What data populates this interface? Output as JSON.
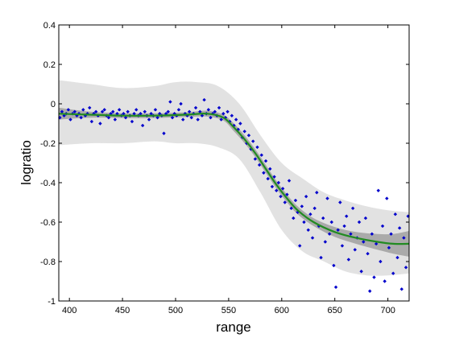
{
  "chart_data": {
    "type": "scatter",
    "xlabel": "range",
    "ylabel": "logratio",
    "xlim": [
      390,
      720
    ],
    "ylim": [
      -1,
      0.4
    ],
    "xticks": [
      400,
      450,
      500,
      550,
      600,
      650,
      700
    ],
    "yticks": [
      -1,
      -0.8,
      -0.6,
      -0.4,
      -0.2,
      0,
      0.2,
      0.4
    ],
    "ytick_labels": [
      "-1",
      "-0.8",
      "-0.6",
      "-0.4",
      "-0.2",
      "0",
      "0.2",
      "0.4"
    ],
    "grid": false,
    "colors": {
      "points": "#0000cc",
      "fit_line": "#228b22",
      "prediction_band": "#e2e2e2",
      "confidence_band": "#aaaaaa"
    },
    "fit": {
      "name": "",
      "x": [
        390,
        420,
        450,
        480,
        510,
        530,
        545,
        555,
        565,
        575,
        585,
        595,
        605,
        615,
        630,
        650,
        670,
        690,
        705,
        720
      ],
      "y": [
        -0.05,
        -0.055,
        -0.06,
        -0.06,
        -0.055,
        -0.05,
        -0.07,
        -0.12,
        -0.18,
        -0.25,
        -0.33,
        -0.41,
        -0.48,
        -0.54,
        -0.6,
        -0.65,
        -0.68,
        -0.7,
        -0.71,
        -0.71
      ],
      "ci_half_width": [
        0.03,
        0.015,
        0.012,
        0.012,
        0.012,
        0.015,
        0.015,
        0.02,
        0.02,
        0.02,
        0.02,
        0.02,
        0.02,
        0.02,
        0.02,
        0.025,
        0.03,
        0.04,
        0.05,
        0.065
      ]
    },
    "prediction_band": {
      "x": [
        390,
        420,
        450,
        480,
        500,
        520,
        540,
        560,
        580,
        600,
        620,
        640,
        660,
        680,
        700,
        720
      ],
      "upper": [
        0.12,
        0.1,
        0.08,
        0.09,
        0.11,
        0.11,
        0.09,
        0.0,
        -0.16,
        -0.3,
        -0.38,
        -0.45,
        -0.49,
        -0.52,
        -0.54,
        -0.55
      ],
      "lower": [
        -0.21,
        -0.2,
        -0.2,
        -0.19,
        -0.2,
        -0.2,
        -0.22,
        -0.28,
        -0.45,
        -0.64,
        -0.75,
        -0.8,
        -0.85,
        -0.87,
        -0.87,
        -0.86
      ]
    },
    "points": [
      [
        391,
        -0.07
      ],
      [
        393,
        -0.04
      ],
      [
        395,
        -0.06
      ],
      [
        397,
        -0.05
      ],
      [
        399,
        -0.03
      ],
      [
        401,
        -0.08
      ],
      [
        403,
        -0.05
      ],
      [
        405,
        -0.04
      ],
      [
        407,
        -0.06
      ],
      [
        409,
        -0.05
      ],
      [
        411,
        -0.07
      ],
      [
        413,
        -0.03
      ],
      [
        415,
        -0.06
      ],
      [
        417,
        -0.05
      ],
      [
        419,
        -0.02
      ],
      [
        421,
        -0.09
      ],
      [
        423,
        -0.05
      ],
      [
        425,
        -0.04
      ],
      [
        427,
        -0.06
      ],
      [
        429,
        -0.1
      ],
      [
        431,
        -0.04
      ],
      [
        433,
        -0.03
      ],
      [
        435,
        -0.06
      ],
      [
        437,
        -0.07
      ],
      [
        439,
        -0.05
      ],
      [
        441,
        -0.04
      ],
      [
        443,
        -0.08
      ],
      [
        445,
        -0.05
      ],
      [
        447,
        -0.03
      ],
      [
        449,
        -0.06
      ],
      [
        451,
        -0.05
      ],
      [
        453,
        -0.07
      ],
      [
        455,
        -0.04
      ],
      [
        457,
        -0.06
      ],
      [
        459,
        -0.09
      ],
      [
        461,
        -0.05
      ],
      [
        463,
        -0.03
      ],
      [
        465,
        -0.06
      ],
      [
        467,
        -0.05
      ],
      [
        469,
        -0.11
      ],
      [
        471,
        -0.04
      ],
      [
        473,
        -0.06
      ],
      [
        475,
        -0.08
      ],
      [
        477,
        -0.05
      ],
      [
        479,
        -0.06
      ],
      [
        481,
        -0.03
      ],
      [
        483,
        -0.07
      ],
      [
        485,
        -0.05
      ],
      [
        487,
        -0.06
      ],
      [
        489,
        -0.15
      ],
      [
        491,
        -0.05
      ],
      [
        493,
        -0.04
      ],
      [
        495,
        0.01
      ],
      [
        497,
        -0.07
      ],
      [
        499,
        -0.05
      ],
      [
        501,
        -0.06
      ],
      [
        503,
        -0.03
      ],
      [
        505,
        0.0
      ],
      [
        507,
        -0.08
      ],
      [
        509,
        -0.05
      ],
      [
        511,
        -0.06
      ],
      [
        513,
        -0.04
      ],
      [
        515,
        -0.07
      ],
      [
        517,
        -0.05
      ],
      [
        519,
        -0.02
      ],
      [
        521,
        -0.08
      ],
      [
        523,
        -0.04
      ],
      [
        525,
        -0.06
      ],
      [
        527,
        0.02
      ],
      [
        529,
        -0.05
      ],
      [
        531,
        -0.03
      ],
      [
        533,
        -0.07
      ],
      [
        535,
        -0.05
      ],
      [
        537,
        -0.04
      ],
      [
        539,
        -0.06
      ],
      [
        541,
        -0.02
      ],
      [
        543,
        -0.08
      ],
      [
        545,
        -0.05
      ],
      [
        547,
        -0.07
      ],
      [
        549,
        -0.04
      ],
      [
        551,
        -0.09
      ],
      [
        553,
        -0.06
      ],
      [
        555,
        -0.11
      ],
      [
        557,
        -0.08
      ],
      [
        559,
        -0.13
      ],
      [
        561,
        -0.1
      ],
      [
        563,
        -0.17
      ],
      [
        565,
        -0.14
      ],
      [
        567,
        -0.2
      ],
      [
        569,
        -0.16
      ],
      [
        571,
        -0.23
      ],
      [
        573,
        -0.19
      ],
      [
        575,
        -0.28
      ],
      [
        577,
        -0.22
      ],
      [
        579,
        -0.31
      ],
      [
        581,
        -0.26
      ],
      [
        583,
        -0.35
      ],
      [
        585,
        -0.29
      ],
      [
        587,
        -0.38
      ],
      [
        589,
        -0.33
      ],
      [
        591,
        -0.42
      ],
      [
        593,
        -0.37
      ],
      [
        595,
        -0.44
      ],
      [
        597,
        -0.4
      ],
      [
        599,
        -0.47
      ],
      [
        601,
        -0.43
      ],
      [
        603,
        -0.5
      ],
      [
        605,
        -0.46
      ],
      [
        607,
        -0.39
      ],
      [
        609,
        -0.53
      ],
      [
        611,
        -0.58
      ],
      [
        613,
        -0.49
      ],
      [
        615,
        -0.55
      ],
      [
        617,
        -0.72
      ],
      [
        619,
        -0.52
      ],
      [
        621,
        -0.6
      ],
      [
        623,
        -0.47
      ],
      [
        625,
        -0.64
      ],
      [
        627,
        -0.56
      ],
      [
        629,
        -0.68
      ],
      [
        631,
        -0.53
      ],
      [
        633,
        -0.45
      ],
      [
        635,
        -0.62
      ],
      [
        637,
        -0.78
      ],
      [
        639,
        -0.58
      ],
      [
        641,
        -0.7
      ],
      [
        643,
        -0.48
      ],
      [
        645,
        -0.66
      ],
      [
        647,
        -0.6
      ],
      [
        649,
        -0.82
      ],
      [
        651,
        -0.93
      ],
      [
        653,
        -0.64
      ],
      [
        655,
        -0.5
      ],
      [
        657,
        -0.72
      ],
      [
        659,
        -0.62
      ],
      [
        661,
        -0.57
      ],
      [
        663,
        -0.79
      ],
      [
        665,
        -0.66
      ],
      [
        667,
        -0.53
      ],
      [
        669,
        -0.74
      ],
      [
        671,
        -0.68
      ],
      [
        673,
        -0.6
      ],
      [
        675,
        -0.85
      ],
      [
        677,
        -0.7
      ],
      [
        679,
        -0.58
      ],
      [
        681,
        -0.76
      ],
      [
        683,
        -0.95
      ],
      [
        685,
        -0.66
      ],
      [
        687,
        -0.88
      ],
      [
        689,
        -0.71
      ],
      [
        691,
        -0.44
      ],
      [
        693,
        -0.8
      ],
      [
        695,
        -0.62
      ],
      [
        697,
        -0.9
      ],
      [
        699,
        -0.48
      ],
      [
        701,
        -0.73
      ],
      [
        703,
        -0.66
      ],
      [
        705,
        -0.86
      ],
      [
        707,
        -0.56
      ],
      [
        709,
        -0.78
      ],
      [
        711,
        -0.63
      ],
      [
        713,
        -0.94
      ],
      [
        715,
        -0.68
      ],
      [
        717,
        -0.83
      ],
      [
        719,
        -0.57
      ]
    ]
  }
}
